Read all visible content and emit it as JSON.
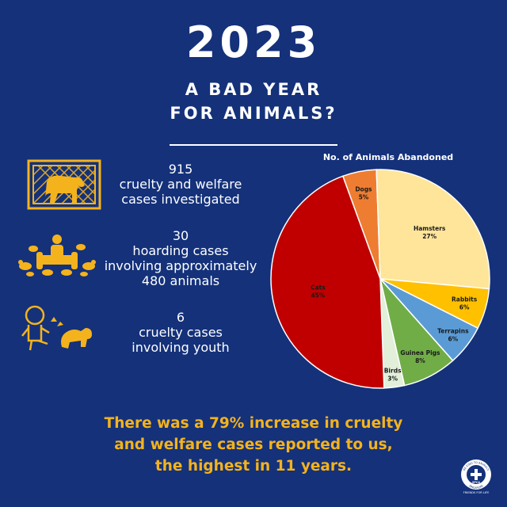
{
  "header": {
    "year": "2023",
    "line1": "A BAD YEAR",
    "line2": "FOR ANIMALS?"
  },
  "stats": [
    {
      "lines": [
        "915",
        "cruelty and welfare",
        "cases investigated"
      ],
      "icon": "caged-dog-icon"
    },
    {
      "lines": [
        "30",
        "hoarding cases",
        "involving approximately",
        "480 animals"
      ],
      "icon": "hoarder-with-pets-icon"
    },
    {
      "lines": [
        "6",
        "cruelty  cases",
        "involving youth"
      ],
      "icon": "child-kicking-dog-icon"
    }
  ],
  "footer": {
    "line1": "There was a 79% increase in cruelty",
    "line2": "and welfare cases reported to us,",
    "line3": "the highest in 11 years."
  },
  "logo": {
    "ring_top": "BE KIND TO ANIMALS",
    "ring_bottom": "SINGAPORE",
    "center": "SPCA",
    "tagline": "FRIENDS FOR LIFE"
  },
  "colors": {
    "background": "#14317a",
    "accent": "#f4b31d",
    "icon": "#f4b31d"
  },
  "chart_data": {
    "type": "pie",
    "title": "No. of Animals Abandoned",
    "slices": [
      {
        "label": "Dogs",
        "value": 5,
        "color": "#ee7d31"
      },
      {
        "label": "Hamsters",
        "value": 27,
        "color": "#ffe59a"
      },
      {
        "label": "Rabbits",
        "value": 6,
        "color": "#ffc000"
      },
      {
        "label": "Terrapins",
        "value": 6,
        "color": "#5b9bd5"
      },
      {
        "label": "Guinea Pigs",
        "value": 8,
        "color": "#70ad47"
      },
      {
        "label": "Birds",
        "value": 3,
        "color": "#e2efd9"
      },
      {
        "label": "Cats",
        "value": 45,
        "color": "#c00000"
      }
    ],
    "value_suffix": "%",
    "start_angle_deg": 340,
    "legend": "none"
  }
}
